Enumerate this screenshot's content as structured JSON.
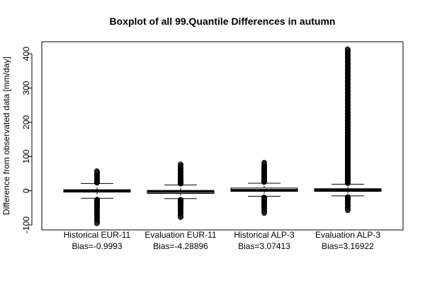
{
  "chart_data": {
    "type": "boxplot",
    "title": "Boxplot of all 99.Quantile Differences in autumn",
    "ylabel": "Difference from observated data [mm/day]",
    "xlabel": "",
    "ylim": [
      -115,
      425
    ],
    "yticks": [
      -100,
      0,
      100,
      200,
      300,
      400
    ],
    "grid": false,
    "legend": "none",
    "groups": [
      {
        "label": "Historical EUR-11",
        "bias": "Bias=-0.9993",
        "whisker_low": -22,
        "q1": -4,
        "median": 0,
        "q3": 3,
        "whisker_high": 21,
        "outliers_high_range": [
          23,
          58
        ],
        "outliers_low_range": [
          -96,
          -26
        ]
      },
      {
        "label": "Evaluation EUR-11",
        "bias": "Bias=-4.28896",
        "whisker_low": -23,
        "q1": -8,
        "median": -3,
        "q3": 1,
        "whisker_high": 17,
        "outliers_high_range": [
          20,
          78
        ],
        "outliers_low_range": [
          -78,
          -26
        ]
      },
      {
        "label": "Historical ALP-3",
        "bias": "Bias=3.07413",
        "whisker_low": -16,
        "q1": -2,
        "median": 2,
        "q3": 8,
        "whisker_high": 22,
        "outliers_high_range": [
          25,
          83
        ],
        "outliers_low_range": [
          -66,
          -19
        ]
      },
      {
        "label": "Evaluation ALP-3",
        "bias": "Bias=3.16922",
        "whisker_low": -15,
        "q1": -2,
        "median": 2,
        "q3": 6,
        "whisker_high": 19,
        "outliers_high_range": [
          22,
          414
        ],
        "outliers_low_range": [
          -58,
          -18
        ]
      }
    ]
  }
}
